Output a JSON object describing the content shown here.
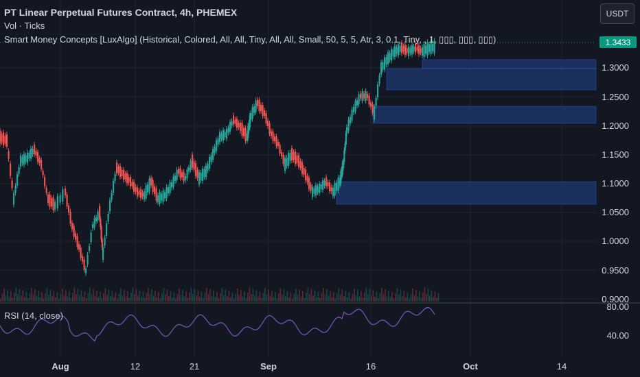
{
  "header": {
    "title": "PT Linear Perpetual Futures Contract, 4h, PHEMEX",
    "vol_label": "Vol · Ticks",
    "smc_label": "Smart Money Concepts [LuxAlgo] (Historical, Colored, All, All, Tiny, All, All, Small, 50, 5, 5, Atr, 3, 0.1, Tiny, , 1, ▯▯▯, ▯▯▯, ▯▯▯)",
    "currency": "USDT"
  },
  "price_axis": {
    "labels": [
      "1.3000",
      "1.2500",
      "1.2000",
      "1.1500",
      "1.1000",
      "1.0500",
      "1.0000",
      "0.9500",
      "0.9000"
    ],
    "last_price": "1.3433"
  },
  "rsi": {
    "label": "RSI (14, close)",
    "axis_labels": [
      "80.00",
      "40.00"
    ]
  },
  "time_axis": {
    "labels": [
      {
        "text": "Aug",
        "bold": true
      },
      {
        "text": "12",
        "bold": false
      },
      {
        "text": "21",
        "bold": false
      },
      {
        "text": "Sep",
        "bold": true
      },
      {
        "text": "16",
        "bold": false
      },
      {
        "text": "Oct",
        "bold": true
      },
      {
        "text": "14",
        "bold": false
      }
    ]
  },
  "colors": {
    "up": "#26a69a",
    "down": "#ef5350",
    "zone": "#1e3a6e",
    "rsi_line": "#7e57c2",
    "price_tag": "#089981"
  }
}
